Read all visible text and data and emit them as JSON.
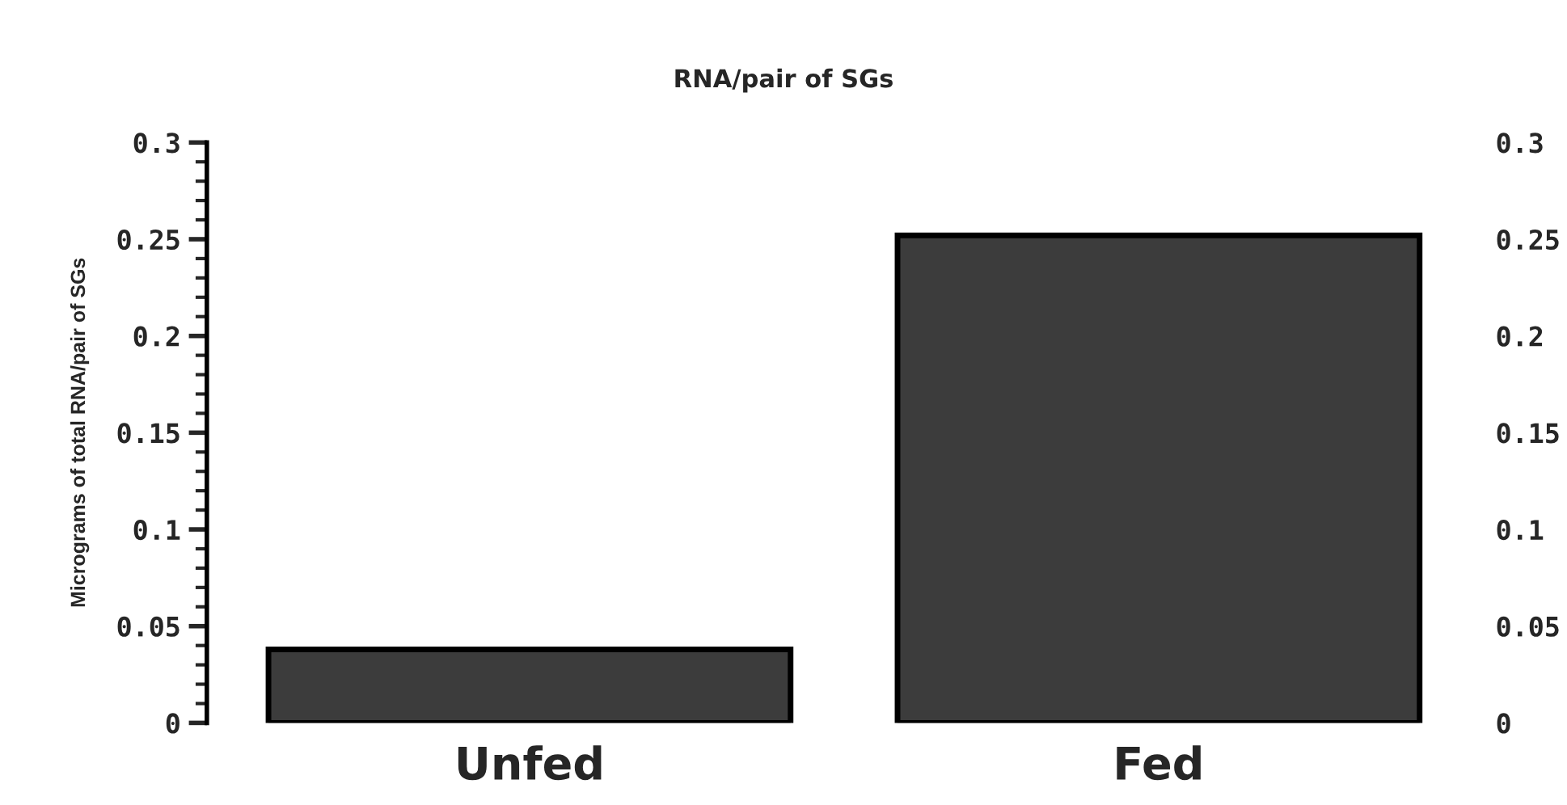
{
  "chart_data": {
    "type": "bar",
    "title": "RNA/pair of SGs",
    "ylabel": "Micrograms of total RNA/pair of SGs",
    "categories": [
      "Unfed",
      "Fed"
    ],
    "series": [
      {
        "color": "#3c3c3c",
        "values": [
          0.038,
          0.252
        ]
      }
    ],
    "ylim": [
      0,
      0.3
    ],
    "yticks": [
      0,
      0.05,
      0.1,
      0.15,
      0.2,
      0.25,
      0.3
    ],
    "y2lim": [
      0,
      0.3
    ],
    "y2ticks": [
      0,
      0.05,
      0.1,
      0.15,
      0.2,
      0.25,
      0.3
    ],
    "grid": false,
    "legend": false
  }
}
